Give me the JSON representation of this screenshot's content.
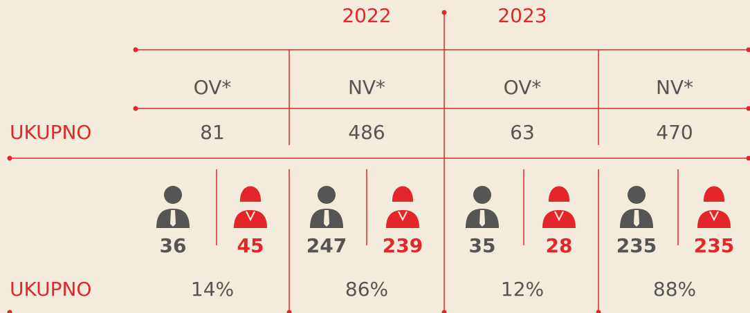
{
  "years": [
    "2022",
    "2023"
  ],
  "columns": [
    "OV*",
    "NV*",
    "OV*",
    "NV*"
  ],
  "totals_label": "UKUPNO",
  "totals": [
    "81",
    "486",
    "63",
    "470"
  ],
  "gender_counts": [
    [
      "36",
      "45"
    ],
    [
      "247",
      "239"
    ],
    [
      "35",
      "28"
    ],
    [
      "235",
      "235"
    ]
  ],
  "percent_label": "UKUPNO",
  "percents": [
    "14%",
    "86%",
    "12%",
    "88%"
  ]
}
